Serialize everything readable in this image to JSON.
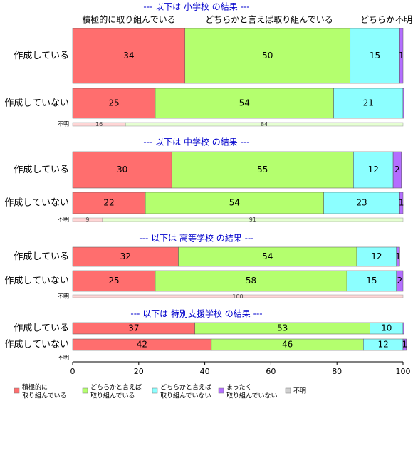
{
  "chart_data": {
    "type": "bar",
    "orientation": "horizontal",
    "stacked": true,
    "xlim": [
      0,
      100
    ],
    "x_ticks": [
      "0",
      "20",
      "40",
      "60",
      "80",
      "100"
    ],
    "column_labels": [
      "積極的に取り組んでいる",
      "どちらかと言えば取り組んでいる",
      "どちらか",
      "不明"
    ],
    "legend_position": "bottom",
    "categories_legend": [
      {
        "key": "sekkyoku",
        "label_line1": "積極的に",
        "label_line2": "取り組んでいる",
        "color": "#ff6e6e"
      },
      {
        "key": "dochiraka_yes",
        "label_line1": "どちらかと言えば",
        "label_line2": "取り組んでいる",
        "color": "#b4ff6e"
      },
      {
        "key": "dochiraka_no",
        "label_line1": "どちらかと言えば",
        "label_line2": "取り組んでいない",
        "color": "#8cffff"
      },
      {
        "key": "mattaku",
        "label_line1": "まったく",
        "label_line2": "取り組んでいない",
        "color": "#b46eff"
      },
      {
        "key": "fumei",
        "label_line1": "不明",
        "label_line2": "",
        "color": "#d0d0d0"
      }
    ],
    "panels": [
      {
        "title": "--- 以下は 小学校 の結果 ---",
        "rows": [
          {
            "label": "作成している",
            "values": [
              34,
              50,
              15,
              1,
              0
            ],
            "data_labels": [
              "34",
              "50",
              "15",
              "1",
              ""
            ]
          },
          {
            "label": "作成していない",
            "values": [
              25,
              54,
              21,
              0.3,
              0
            ],
            "data_labels": [
              "25",
              "54",
              "21",
              "",
              ""
            ]
          }
        ],
        "unknown_row": {
          "label": "不明",
          "values": [
            16,
            84
          ],
          "data_labels": [
            "16",
            "84"
          ]
        }
      },
      {
        "title": "--- 以下は 中学校 の結果 ---",
        "rows": [
          {
            "label": "作成している",
            "values": [
              30,
              55,
              12,
              2.5,
              0
            ],
            "data_labels": [
              "30",
              "55",
              "12",
              "2",
              ""
            ]
          },
          {
            "label": "作成していない",
            "values": [
              22,
              54,
              23,
              1,
              0
            ],
            "data_labels": [
              "22",
              "54",
              "23",
              "1",
              ""
            ]
          }
        ],
        "unknown_row": {
          "label": "不明",
          "values": [
            9,
            91
          ],
          "data_labels": [
            "9",
            "91"
          ]
        }
      },
      {
        "title": "--- 以下は 高等学校 の結果 ---",
        "rows": [
          {
            "label": "作成している",
            "values": [
              32,
              54,
              12,
              1,
              0
            ],
            "data_labels": [
              "32",
              "54",
              "12",
              "1",
              ""
            ]
          },
          {
            "label": "作成していない",
            "values": [
              25,
              58,
              15,
              2,
              0
            ],
            "data_labels": [
              "25",
              "58",
              "15",
              "2",
              ""
            ]
          }
        ],
        "unknown_row": {
          "label": "不明",
          "values": [
            100
          ],
          "data_labels": [
            "100"
          ]
        }
      },
      {
        "title": "--- 以下は 特別支援学校 の結果 ---",
        "rows": [
          {
            "label": "作成している",
            "values": [
              37,
              53,
              10,
              0.3,
              0
            ],
            "data_labels": [
              "37",
              "53",
              "10",
              "",
              ""
            ]
          },
          {
            "label": "作成していない",
            "values": [
              42,
              46,
              12,
              1,
              0
            ],
            "data_labels": [
              "42",
              "46",
              "12",
              "1",
              ""
            ]
          }
        ],
        "unknown_row": {
          "label": "不明",
          "values": [],
          "data_labels": []
        }
      }
    ]
  }
}
